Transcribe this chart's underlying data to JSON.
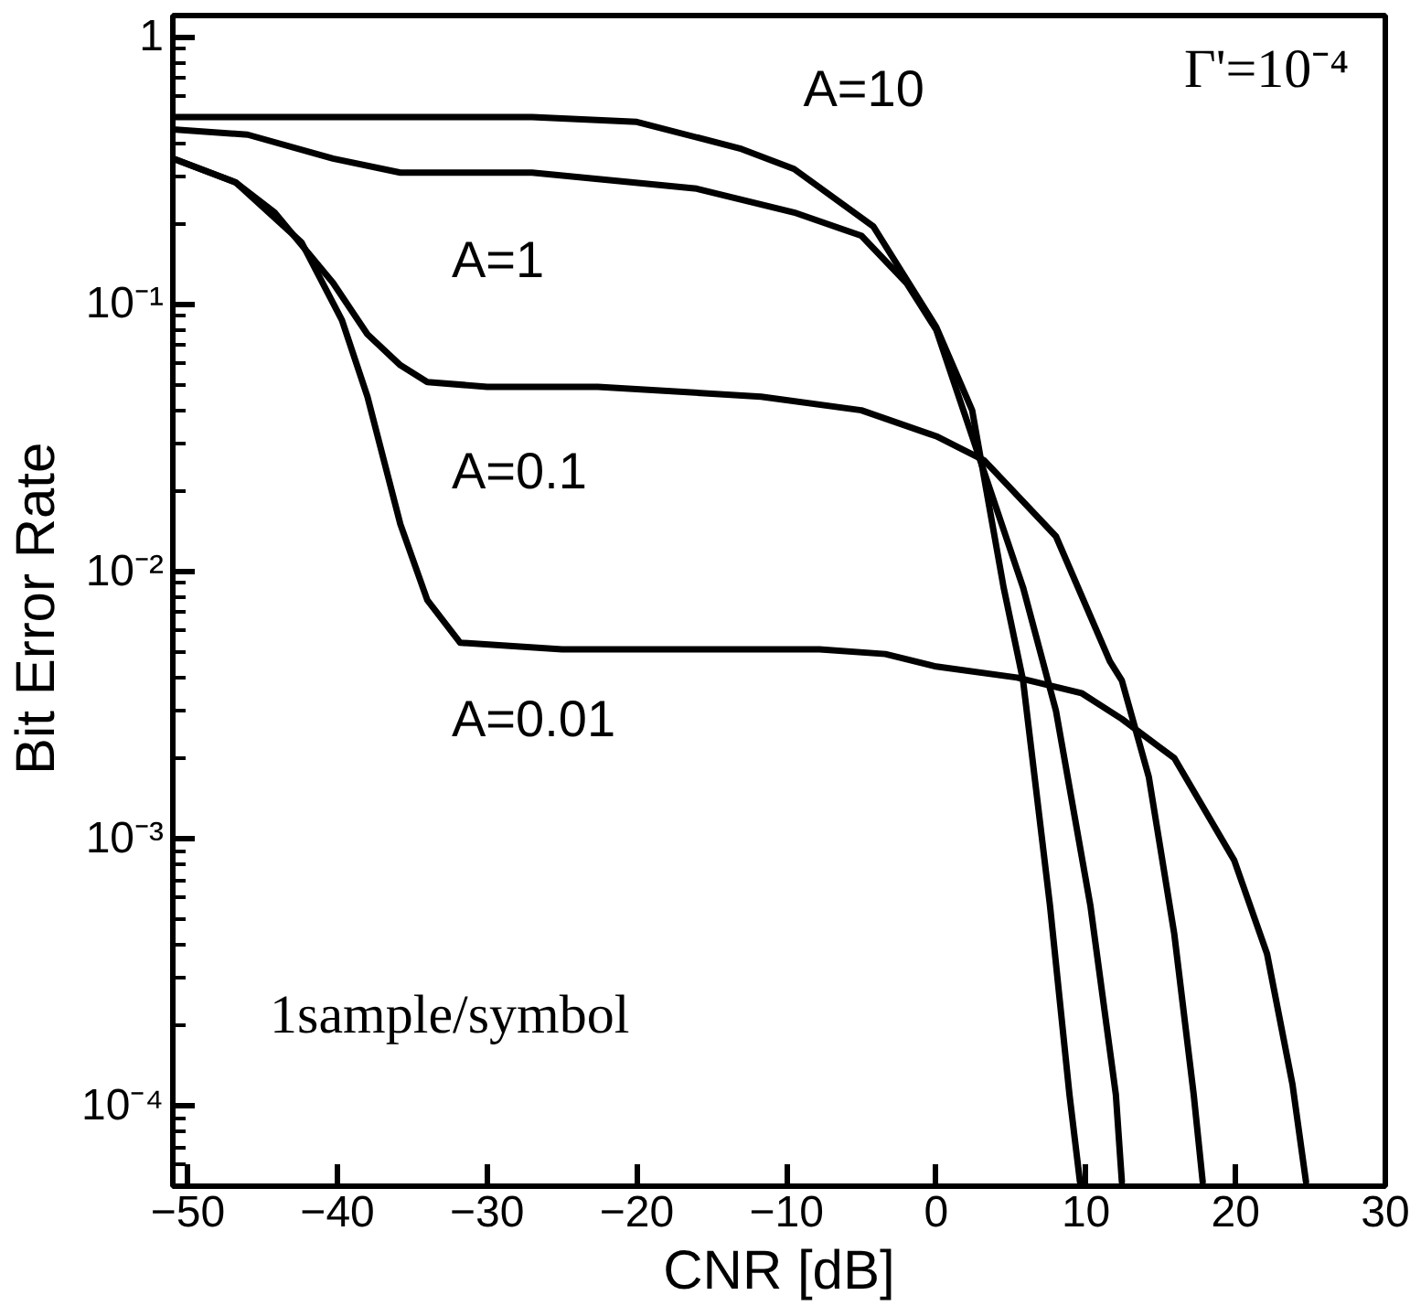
{
  "chart_data": {
    "type": "line",
    "xlabel": "CNR [dB]",
    "ylabel": "Bit Error  Rate",
    "log": "y",
    "xlim": [
      -51,
      30
    ],
    "ylim": [
      5e-05,
      1.2
    ],
    "xticks": [
      -50,
      -40,
      -30,
      -20,
      -10,
      0,
      10,
      20,
      30
    ],
    "yticks": [
      {
        "value": 1,
        "label": "1"
      },
      {
        "value": 0.1,
        "label": "10⁻¹"
      },
      {
        "value": 0.01,
        "label": "10⁻²"
      },
      {
        "value": 0.001,
        "label": "10⁻³"
      },
      {
        "value": 0.0001,
        "label": "10⁻⁴"
      }
    ],
    "grid": false,
    "marker": "none",
    "line_style": "solid",
    "annotations": [
      "Γ'=10⁻⁴",
      "1sample/symbol"
    ],
    "series": [
      {
        "name": "A=10",
        "color": "#000000",
        "x": [
          -51,
          -40,
          -27,
          -20,
          -13,
          -9.5,
          -4.2,
          0,
          2.4,
          4.5,
          5.8,
          7.6,
          8.9,
          9.6
        ],
        "values": [
          0.5,
          0.5,
          0.5,
          0.48,
          0.38,
          0.32,
          0.195,
          0.082,
          0.04,
          0.0087,
          0.0039,
          0.00056,
          0.00011,
          5.2e-05
        ]
      },
      {
        "name": "A=1",
        "color": "#000000",
        "x": [
          -51,
          -46,
          -40.3,
          -35.8,
          -27,
          -16,
          -9.5,
          -5,
          -2,
          0,
          5.8,
          8,
          10.3,
          12,
          12.4
        ],
        "values": [
          0.45,
          0.43,
          0.35,
          0.31,
          0.31,
          0.27,
          0.22,
          0.18,
          0.12,
          0.08,
          0.0087,
          0.003,
          0.00056,
          0.00011,
          5.2e-05
        ]
      },
      {
        "name": "A=0.1",
        "color": "#000000",
        "x": [
          -51,
          -46.8,
          -44.2,
          -40.3,
          -38,
          -35.8,
          -34,
          -30,
          -22.6,
          -11.7,
          -5,
          0,
          3.2,
          8,
          11.6,
          12.4,
          14.2,
          15.9,
          17.2,
          17.8
        ],
        "values": [
          0.35,
          0.285,
          0.22,
          0.12,
          0.077,
          0.059,
          0.051,
          0.049,
          0.049,
          0.045,
          0.04,
          0.032,
          0.026,
          0.0135,
          0.0046,
          0.0039,
          0.0017,
          0.00044,
          0.00011,
          5.2e-05
        ]
      },
      {
        "name": "A=0.01",
        "color": "#000000",
        "x": [
          -51,
          -46.8,
          -42.4,
          -39.7,
          -38,
          -35.8,
          -34,
          -31.8,
          -25,
          -14,
          -7.8,
          -3.4,
          0,
          5.4,
          9.7,
          12.4,
          15.9,
          19.9,
          22.1,
          23.8,
          24.7
        ],
        "values": [
          0.35,
          0.285,
          0.17,
          0.087,
          0.045,
          0.015,
          0.0078,
          0.0054,
          0.0051,
          0.0051,
          0.0051,
          0.0049,
          0.0044,
          0.004,
          0.0035,
          0.0028,
          0.002,
          0.00083,
          0.00037,
          0.00012,
          5.2e-05
        ]
      }
    ]
  }
}
